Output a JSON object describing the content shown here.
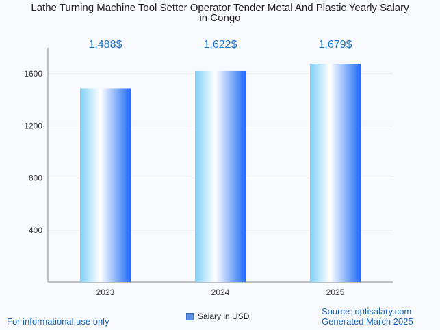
{
  "chart_data": {
    "type": "bar",
    "title_line1": "Lathe Turning Machine Tool Setter Operator Tender Metal And Plastic Yearly Salary",
    "title_line2": "in Congo",
    "categories": [
      "2023",
      "2024",
      "2025"
    ],
    "series": [
      {
        "name": "Salary in USD",
        "values": [
          1488,
          1622,
          1679
        ],
        "labels": [
          "1,488$",
          "1,622$",
          "1,679$"
        ]
      }
    ],
    "yticks": [
      400,
      800,
      1200,
      1600
    ],
    "ylim": [
      0,
      1800
    ],
    "grid": true,
    "legend_position": "bottom-center",
    "colors": {
      "bar_light": "#ffffff",
      "bar_mid": "#7fd0f5",
      "bar_dark": "#1e6cf5",
      "label": "#1976d2"
    }
  },
  "footer": {
    "left": "For informational use only",
    "source": "Source: optisalary.com",
    "generated": "Generated March 2025"
  }
}
